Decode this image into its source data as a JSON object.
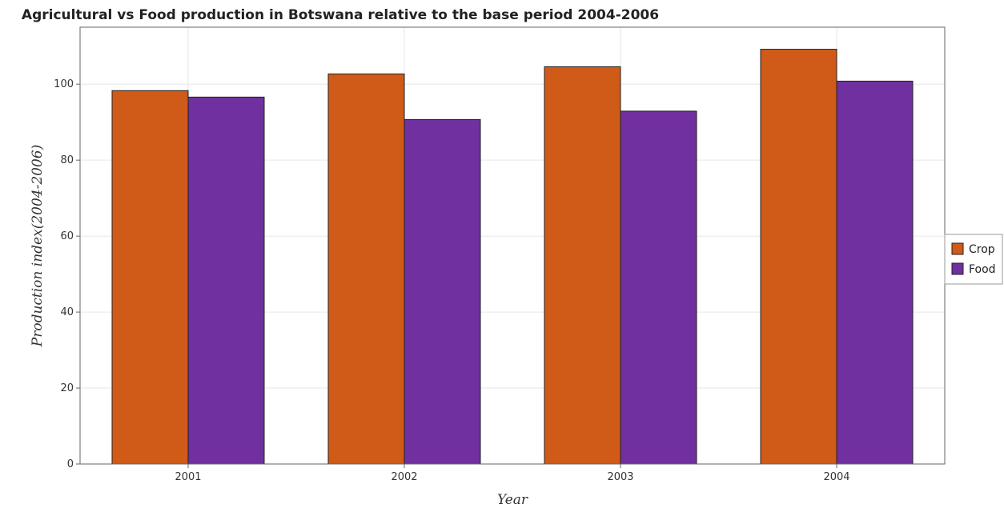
{
  "chart_data": {
    "type": "bar",
    "title": "Agricultural vs Food production in Botswana relative to the base period 2004-2006",
    "xlabel": "Year",
    "ylabel": "Production index(2004-2006)",
    "categories": [
      "2001",
      "2002",
      "2003",
      "2004"
    ],
    "series": [
      {
        "name": "Crop",
        "values": [
          98.3,
          102.7,
          104.6,
          109.2
        ],
        "color": "#d05a17"
      },
      {
        "name": "Food",
        "values": [
          96.6,
          90.7,
          92.9,
          100.8
        ],
        "color": "#7030a0"
      }
    ],
    "ylim": [
      0,
      115
    ],
    "yticks": [
      0,
      20,
      40,
      60,
      80,
      100
    ],
    "grid": true,
    "legend_position": "right"
  }
}
